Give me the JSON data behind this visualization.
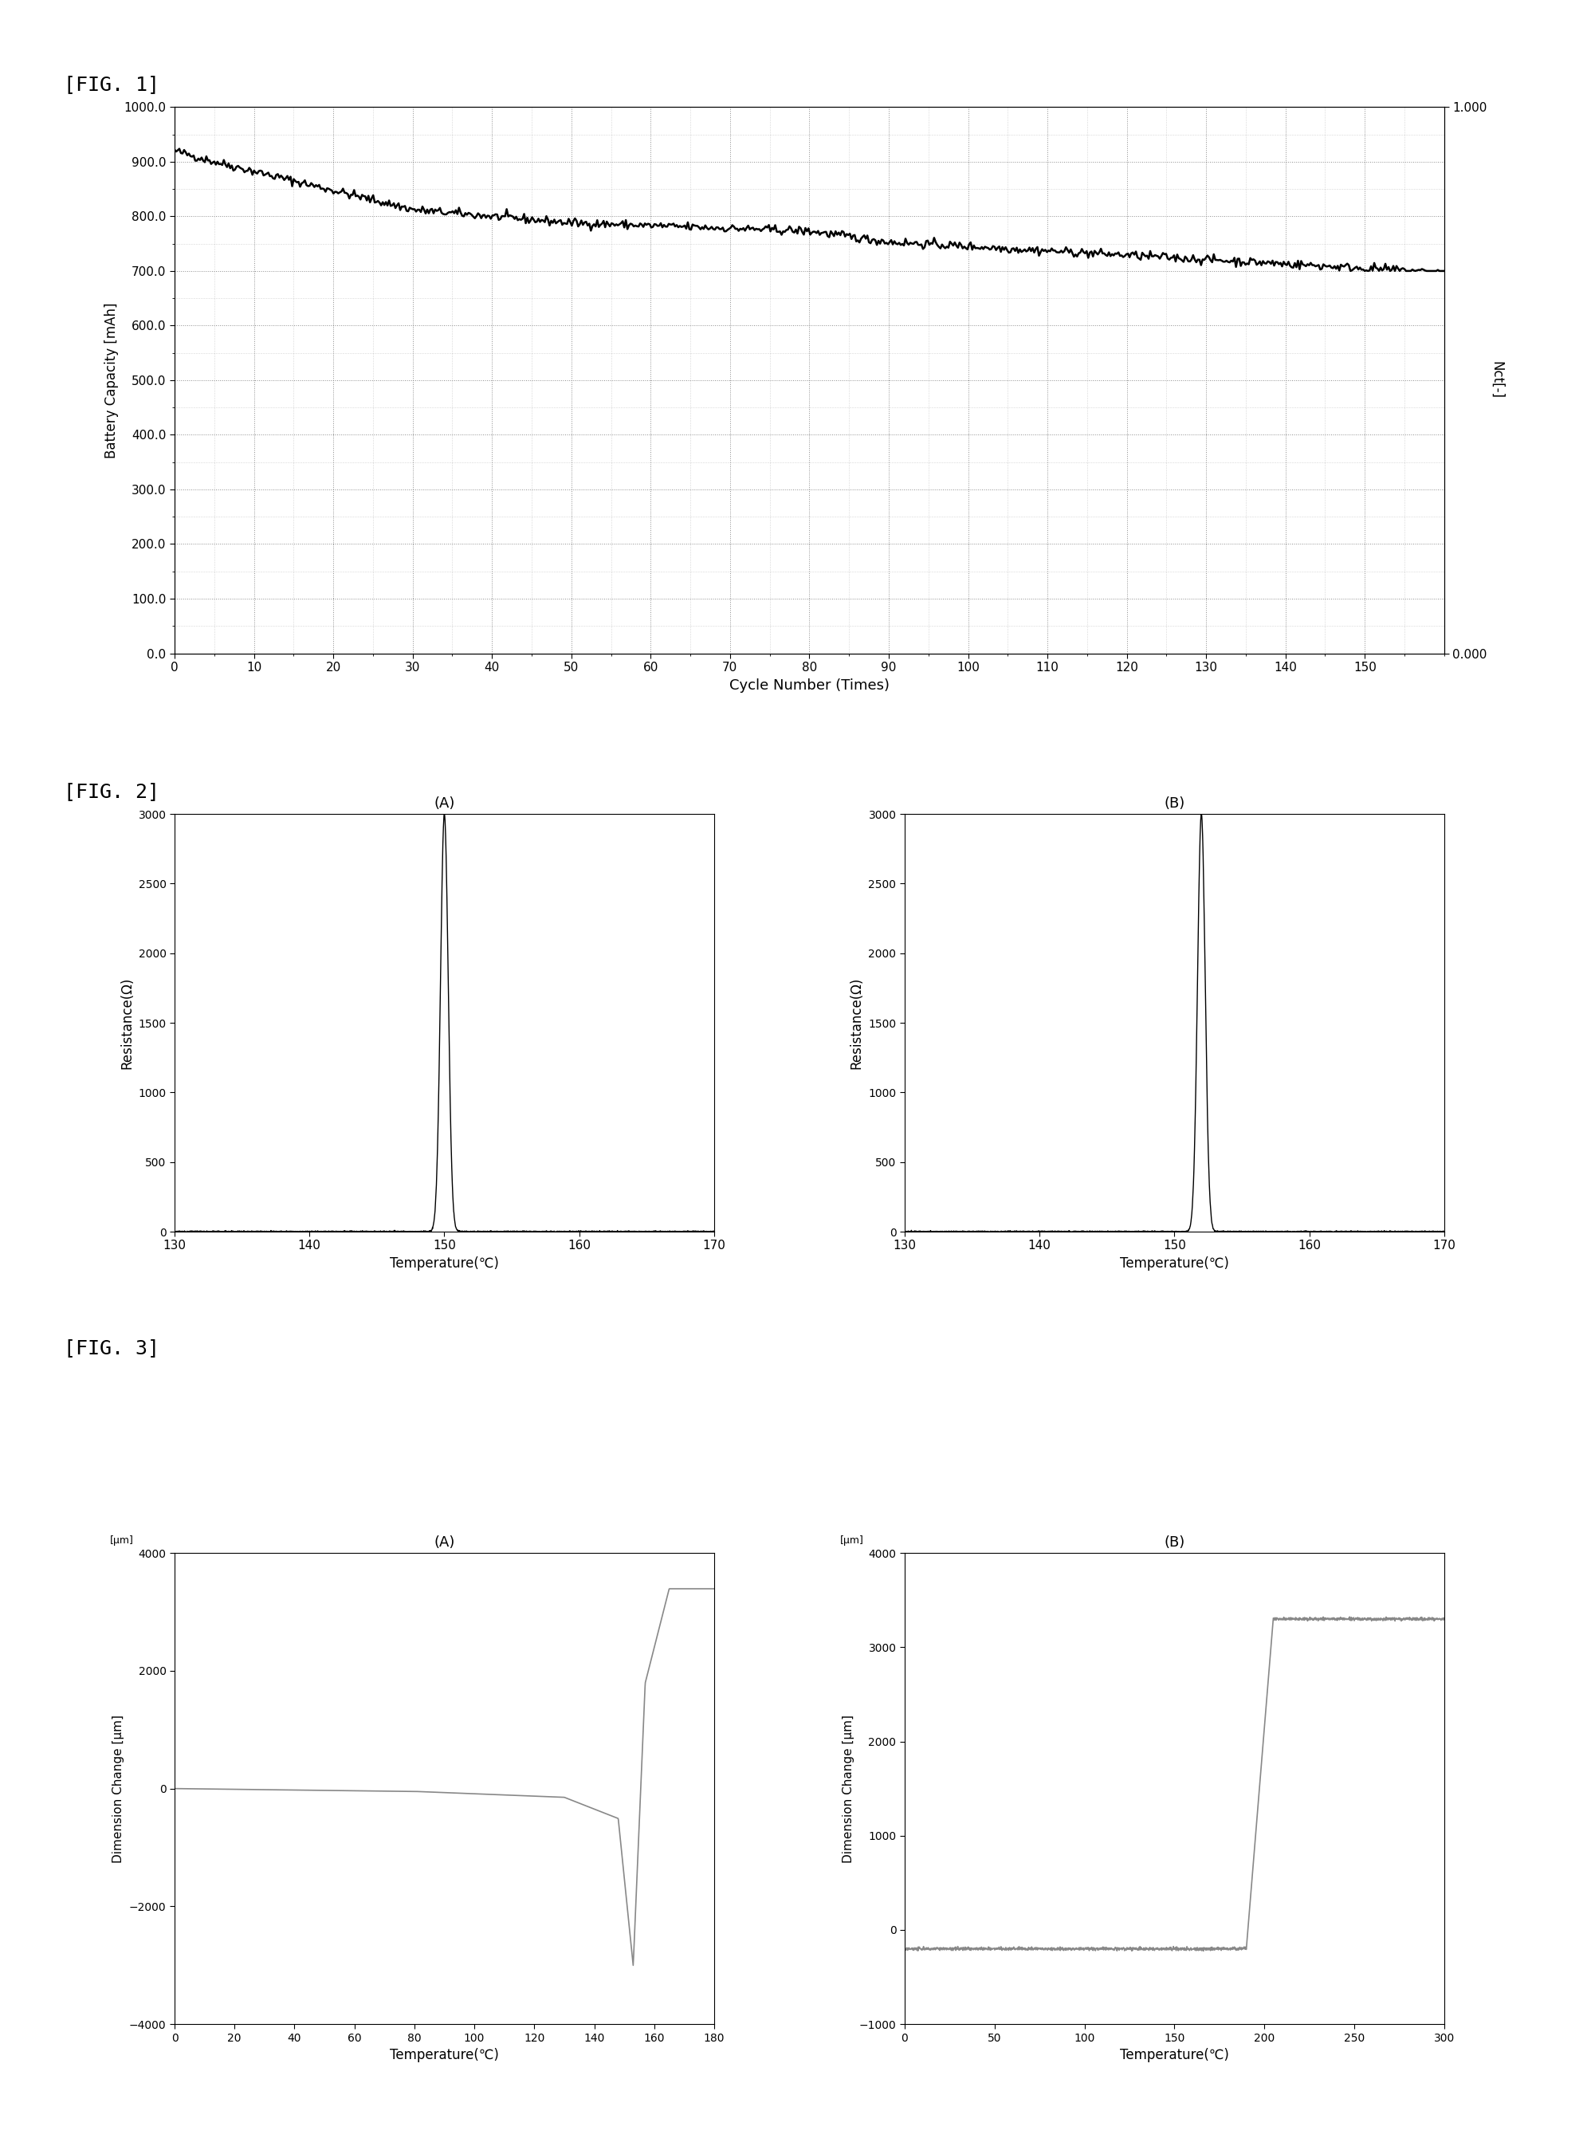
{
  "fig1": {
    "title": "[FIG. 1]",
    "xlabel": "Cycle Number (Times)",
    "ylabel_left": "Battery Capacity [mAh]",
    "ylabel_right": "Nct[-]",
    "xlim": [
      0,
      160
    ],
    "ylim_left": [
      0.0,
      1000.0
    ],
    "ylim_right": [
      0.0,
      1.0
    ],
    "xticks": [
      0,
      10,
      20,
      30,
      40,
      50,
      60,
      70,
      80,
      90,
      100,
      110,
      120,
      130,
      140,
      150
    ],
    "yticks_left": [
      0.0,
      100.0,
      200.0,
      300.0,
      400.0,
      500.0,
      600.0,
      700.0,
      800.0,
      900.0,
      1000.0
    ],
    "yticks_right": [
      0.0,
      1.0
    ],
    "line_color": "#000000"
  },
  "fig2": {
    "title": "[FIG. 2]",
    "subA_title": "(A)",
    "subB_title": "(B)",
    "xlabel": "Temperature(℃)",
    "ylabel": "Resistance(Ω)",
    "xlim": [
      130,
      170
    ],
    "ylim": [
      0,
      3000
    ],
    "xticks": [
      130,
      140,
      150,
      160,
      170
    ],
    "yticks": [
      0,
      500,
      1000,
      1500,
      2000,
      2500,
      3000
    ],
    "peak_A": 150,
    "peak_B": 152,
    "line_color": "#000000"
  },
  "fig3": {
    "title": "[FIG. 3]",
    "subA_title": "(A)",
    "subB_title": "(B)",
    "xlabel": "Temperature(℃)",
    "ylabel": "Dimension Change [μm]",
    "subA": {
      "xlim": [
        0,
        180
      ],
      "ylim": [
        -4000,
        4000
      ],
      "xticks": [
        0,
        20,
        40,
        60,
        80,
        100,
        120,
        140,
        160,
        180
      ],
      "yticks": [
        -4000,
        -2000,
        0,
        2000,
        4000
      ]
    },
    "subB": {
      "xlim": [
        0,
        300
      ],
      "ylim": [
        -1000,
        4000
      ],
      "xticks": [
        0,
        50,
        100,
        150,
        200,
        250,
        300
      ],
      "yticks": [
        -1000,
        0,
        1000,
        2000,
        3000,
        4000
      ]
    },
    "line_color": "#888888"
  }
}
